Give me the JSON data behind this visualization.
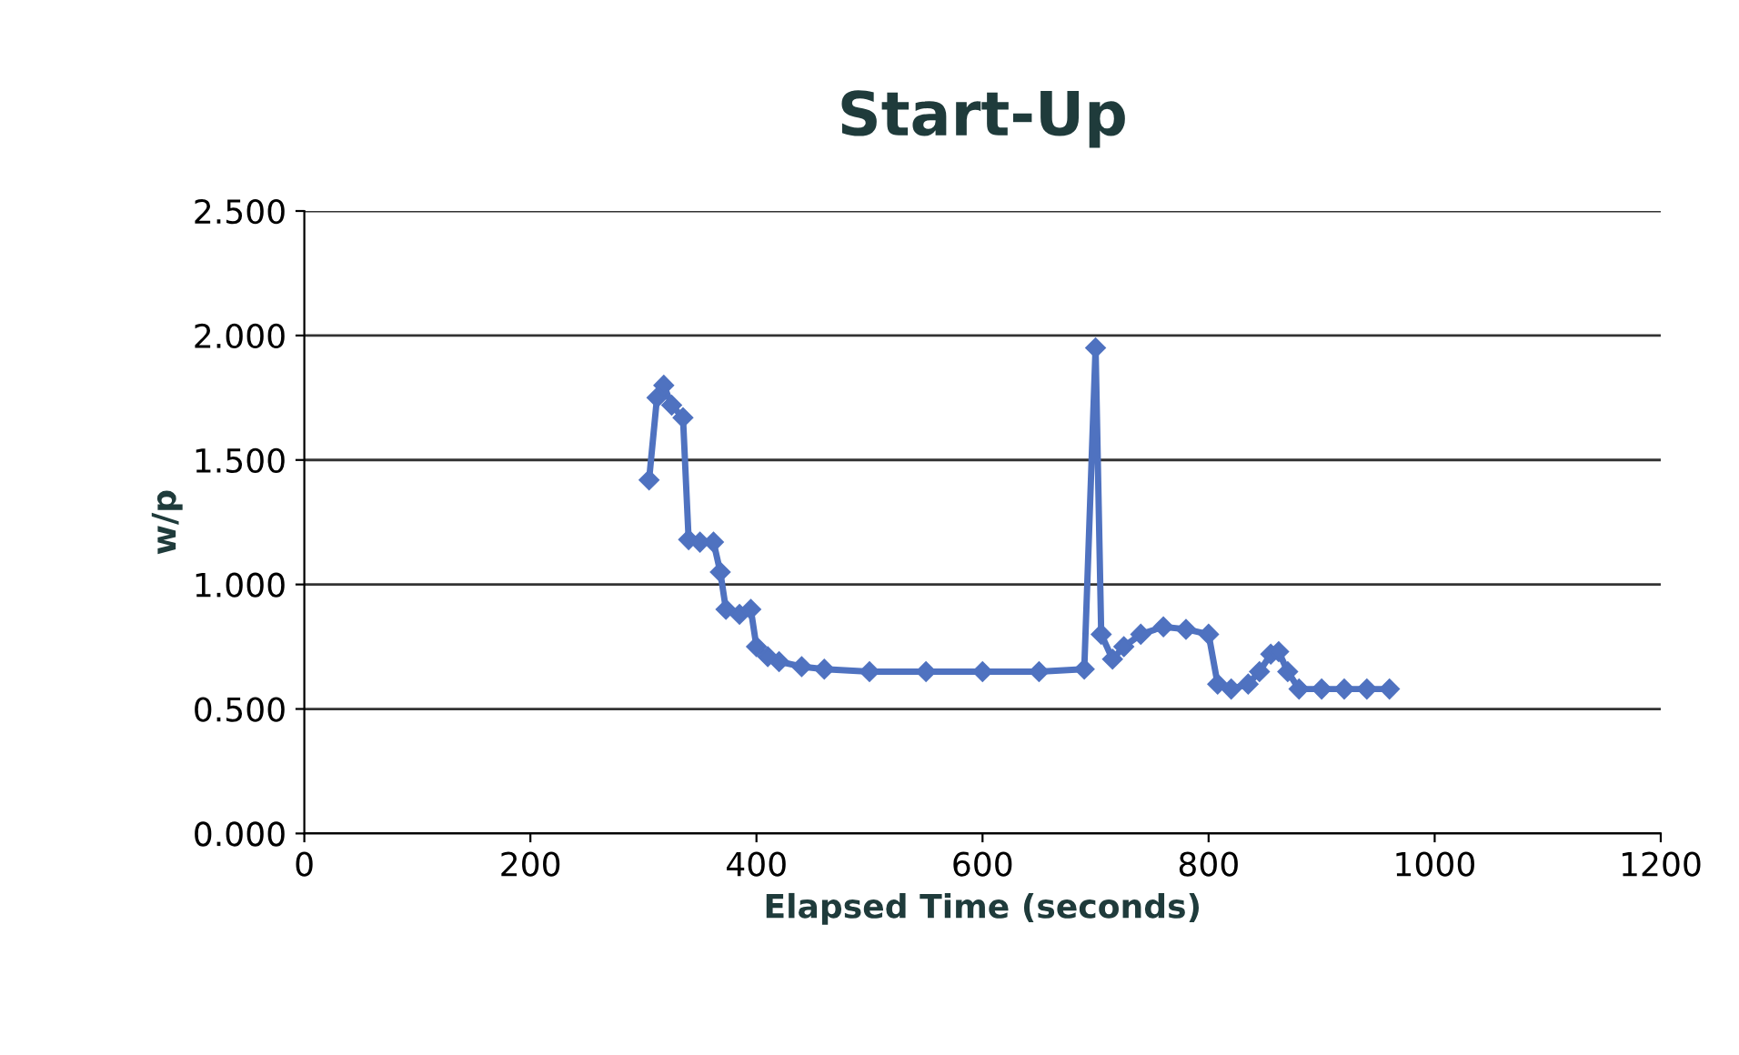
{
  "chart_data": {
    "type": "line",
    "title": "Start-Up",
    "xlabel": "Elapsed Time (seconds)",
    "ylabel": "w/p",
    "xlim": [
      0,
      1200
    ],
    "xticks": [
      0,
      200,
      400,
      600,
      800,
      1000,
      1200
    ],
    "ylim": [
      0,
      2.5
    ],
    "yticks": [
      {
        "value": 0,
        "label": "0.000"
      },
      {
        "value": 0.5,
        "label": "0.500"
      },
      {
        "value": 1,
        "label": "1.000"
      },
      {
        "value": 1.5,
        "label": "1.500"
      },
      {
        "value": 2,
        "label": "2.000"
      },
      {
        "value": 2.5,
        "label": "2.500"
      }
    ],
    "grid": "y",
    "marker": "diamond",
    "line_style": "solid",
    "series": [
      {
        "color": "#4f72c0",
        "x": [
          305,
          312,
          318,
          325,
          335,
          340,
          350,
          362,
          368,
          373,
          385,
          395,
          400,
          410,
          420,
          440,
          460,
          500,
          550,
          600,
          650,
          690,
          700,
          705,
          715,
          725,
          740,
          760,
          780,
          800,
          808,
          820,
          835,
          845,
          855,
          862,
          870,
          880,
          900,
          920,
          940,
          960
        ],
        "values": [
          1.42,
          1.75,
          1.8,
          1.72,
          1.67,
          1.18,
          1.17,
          1.17,
          1.05,
          0.9,
          0.88,
          0.9,
          0.75,
          0.71,
          0.69,
          0.67,
          0.66,
          0.65,
          0.65,
          0.65,
          0.65,
          0.66,
          1.95,
          0.8,
          0.7,
          0.75,
          0.8,
          0.83,
          0.82,
          0.8,
          0.6,
          0.58,
          0.6,
          0.65,
          0.72,
          0.73,
          0.65,
          0.58,
          0.58,
          0.58,
          0.58,
          0.58
        ]
      }
    ]
  }
}
